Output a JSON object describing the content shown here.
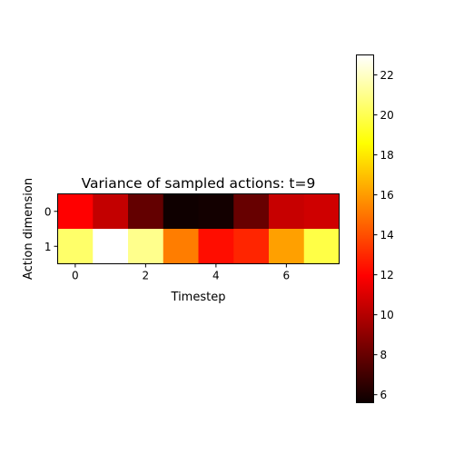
{
  "chart_data": {
    "type": "heatmap",
    "title": "Variance of sampled actions: t=9",
    "xlabel": "Timestep",
    "ylabel": "Action dimension",
    "x_ticks": [
      0,
      2,
      4,
      6
    ],
    "y_ticks": [
      0,
      1
    ],
    "rows": [
      0,
      1
    ],
    "columns": [
      0,
      1,
      2,
      3,
      4,
      5,
      6,
      7
    ],
    "values": [
      [
        11.8,
        10.2,
        7.8,
        5.7,
        5.8,
        7.9,
        10.3,
        10.5
      ],
      [
        20.4,
        23.0,
        21.0,
        15.2,
        12.3,
        12.9,
        16.1,
        19.8
      ]
    ],
    "colormap": "hot",
    "colorbar": {
      "min": 5.6,
      "max": 23.0,
      "ticks": [
        6,
        8,
        10,
        12,
        14,
        16,
        18,
        20,
        22
      ]
    }
  }
}
